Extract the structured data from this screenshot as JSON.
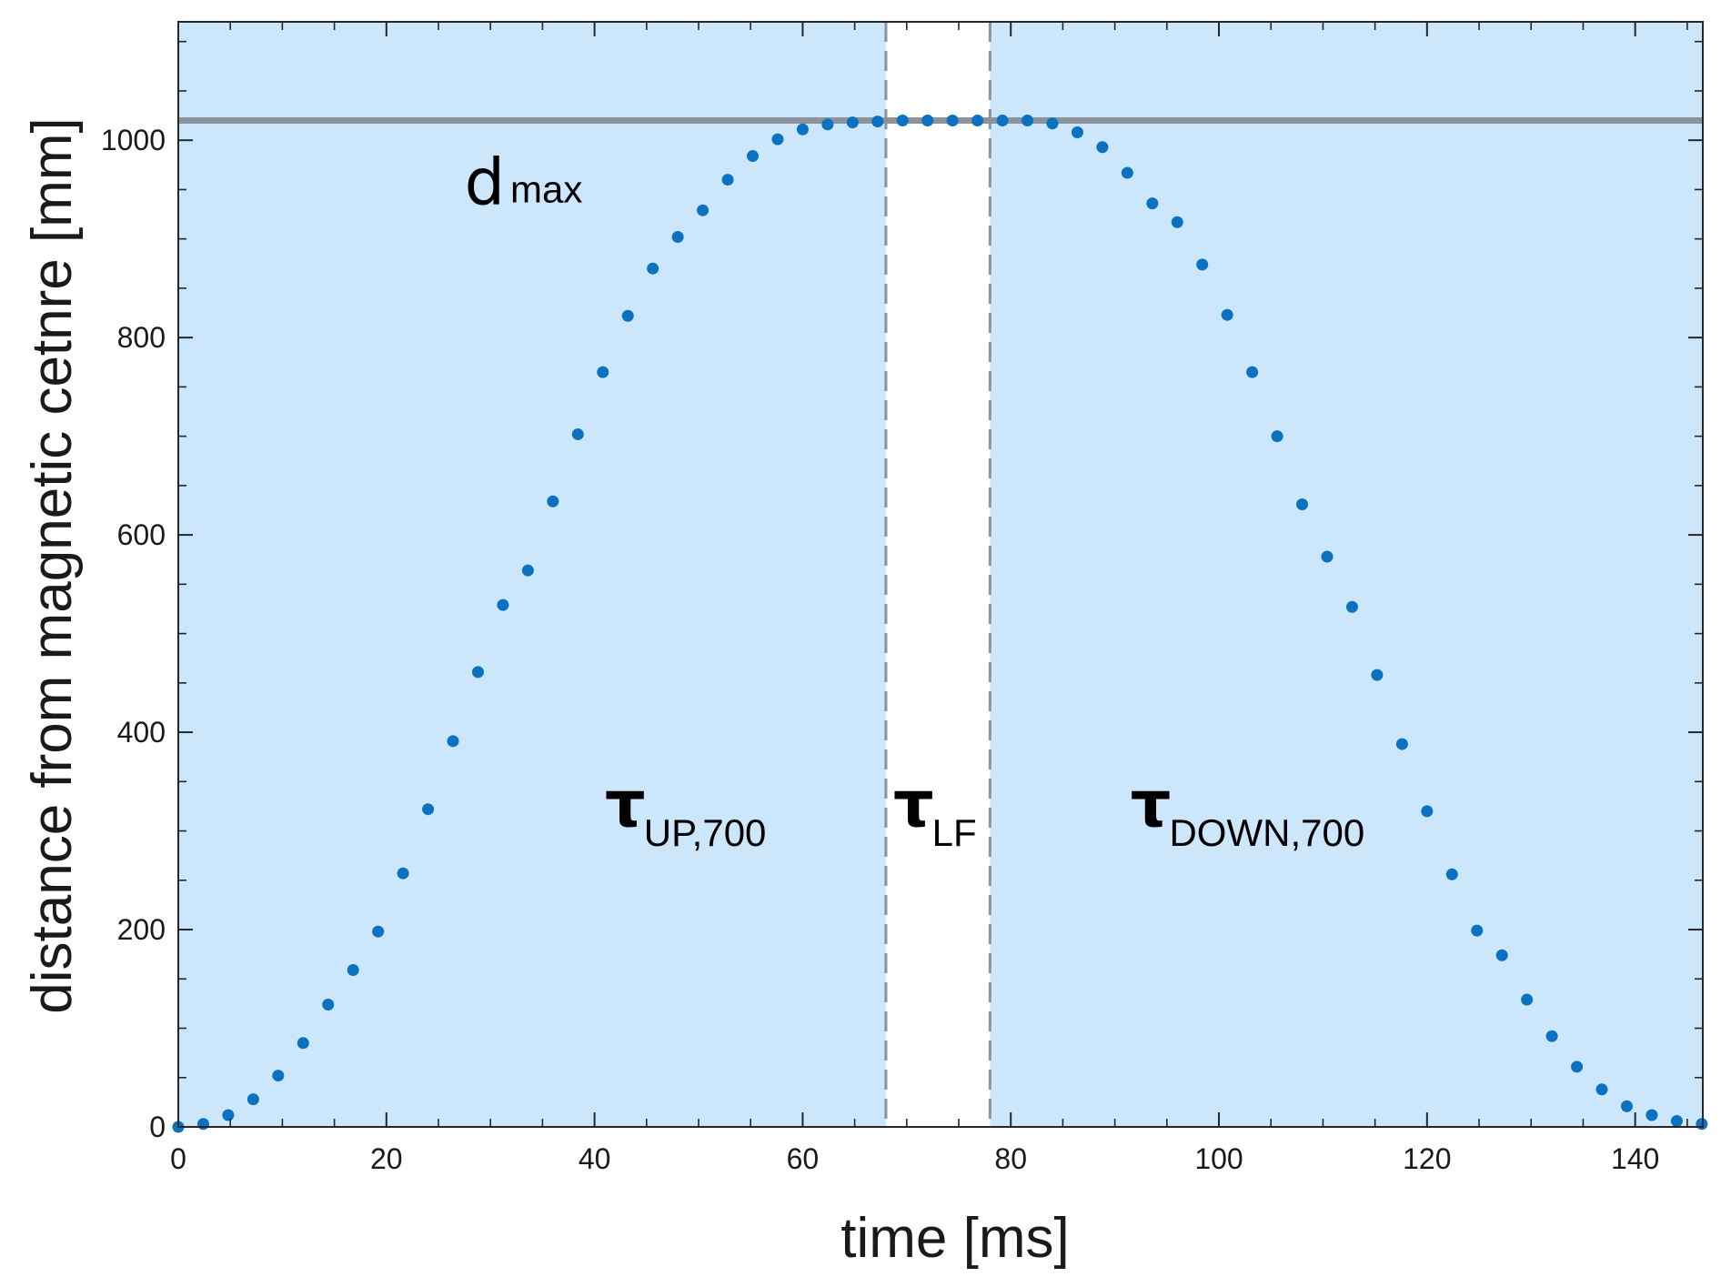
{
  "chart_data": {
    "type": "scatter",
    "xlabel": "time [ms]",
    "ylabel": "distance from magnetic cetnre [mm]",
    "xlim": [
      0,
      146.5
    ],
    "ylim": [
      0,
      1120
    ],
    "xticks": [
      0,
      20,
      40,
      60,
      80,
      100,
      120,
      140
    ],
    "xtick_labels": [
      "0",
      "20",
      "40",
      "60",
      "80",
      "100",
      "120",
      "140"
    ],
    "yticks": [
      0,
      200,
      400,
      600,
      800,
      1000
    ],
    "ytick_labels": [
      "0",
      "200",
      "400",
      "600",
      "800",
      "1000"
    ],
    "grid": false,
    "point_color": "#0a72c0",
    "region_color": "#cce6fc",
    "dmax_line": {
      "y": 1020,
      "color": "#8c939c"
    },
    "vlines": [
      {
        "x": 68.0,
        "color": "#8c939c",
        "style": "dashed"
      },
      {
        "x": 78.0,
        "color": "#8c939c",
        "style": "dashed"
      }
    ],
    "shaded_regions": [
      {
        "x0": 0,
        "x1": 68.0
      },
      {
        "x0": 78.0,
        "x1": 146.5
      }
    ],
    "annotations": [
      {
        "main": "d",
        "sub": "max",
        "x": 27.5,
        "y": 935,
        "style": "text"
      },
      {
        "main": "τ",
        "sub": "UP,700",
        "x": 41.0,
        "y": 305,
        "style": "greek"
      },
      {
        "main": "τ",
        "sub": "LF",
        "x": 68.7,
        "y": 305,
        "style": "greek"
      },
      {
        "main": "τ",
        "sub": "DOWN,700",
        "x": 91.5,
        "y": 305,
        "style": "greek"
      }
    ],
    "series": [
      {
        "x": [
          0,
          2.4,
          4.8,
          7.2,
          9.6,
          12.0,
          14.4,
          16.8,
          19.2,
          21.6,
          24.0,
          26.4,
          28.8,
          31.2,
          33.6,
          36.0,
          38.4,
          40.8,
          43.2,
          45.6,
          48.0,
          50.4,
          52.8,
          55.2,
          57.6,
          60.0,
          62.4,
          64.8,
          67.2,
          69.6,
          72.0,
          74.4,
          76.8,
          79.2,
          81.6,
          84.0,
          86.4,
          88.8,
          91.2,
          93.6,
          96.0,
          98.4,
          100.8,
          103.2,
          105.6,
          108.0,
          110.4,
          112.8,
          115.2,
          117.6,
          120.0,
          122.4,
          124.8,
          127.2,
          129.6,
          132.0,
          134.4,
          136.8,
          139.2,
          141.6,
          144.0,
          146.4
        ],
        "y": [
          0,
          3,
          12,
          28,
          52,
          85,
          124,
          159,
          198,
          257,
          322,
          391,
          461,
          529,
          564,
          634,
          702,
          765,
          822,
          870,
          902,
          929,
          960,
          984,
          1001,
          1011,
          1016,
          1018,
          1019,
          1020,
          1020,
          1020,
          1020,
          1020,
          1020,
          1017,
          1008,
          993,
          967,
          936,
          917,
          874,
          823,
          765,
          700,
          631,
          578,
          527,
          458,
          388,
          320,
          256,
          199,
          174,
          129,
          92,
          61,
          38,
          21,
          12,
          6,
          3
        ]
      }
    ]
  }
}
